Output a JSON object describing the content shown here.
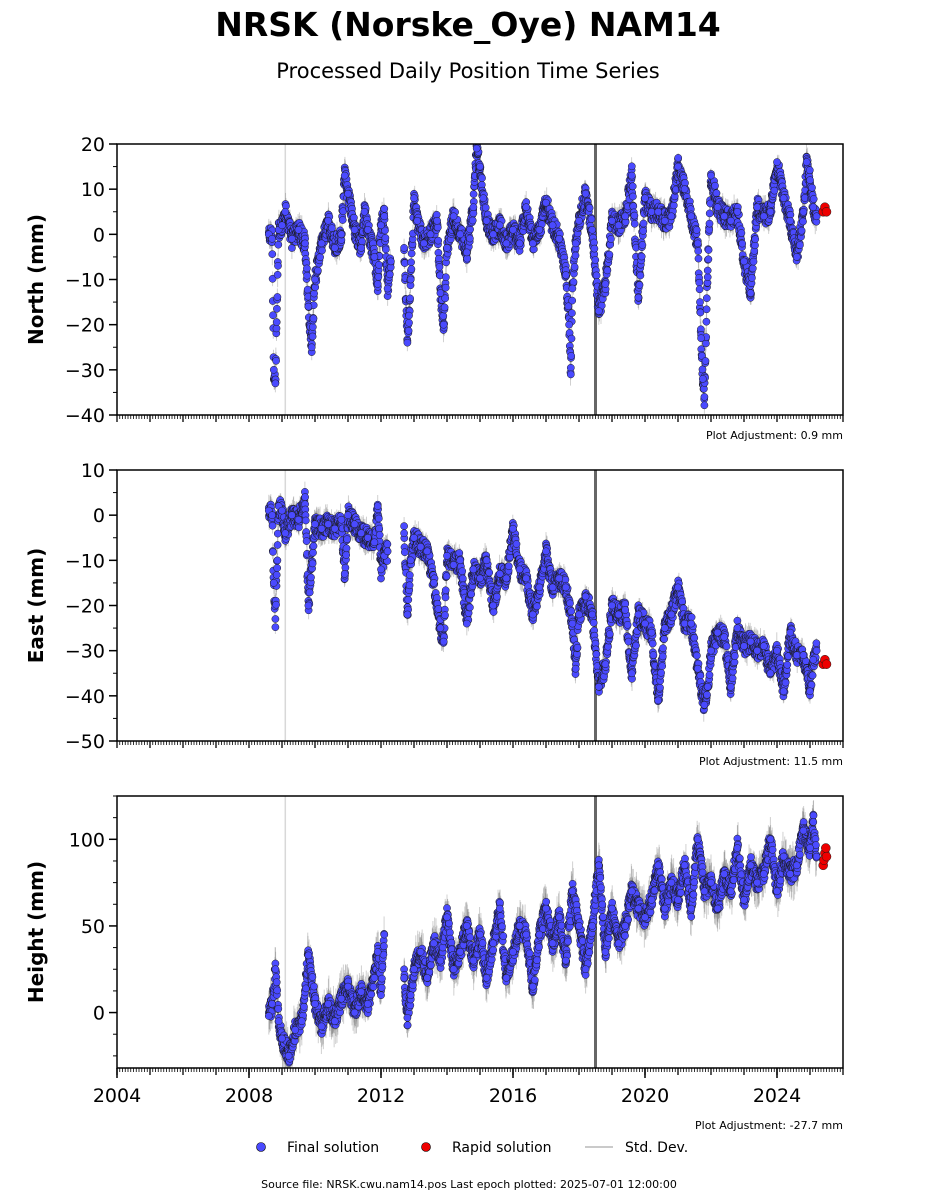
{
  "title": "NRSK (Norske_Oye) NAM14",
  "subtitle": "Processed Daily Position Time Series",
  "footer": "Source file: NRSK.cwu.nam14.pos  Last epoch plotted: 2025-07-01 12:00:00",
  "legend": {
    "final": "Final solution",
    "rapid": "Rapid solution",
    "std": "Std. Dev."
  },
  "colors": {
    "final": "#4a4aff",
    "rapid": "#ee0000",
    "std": "#b8b8b8",
    "event_light": "#d8d8d8",
    "event_dark": "#666666"
  },
  "chart_data": [
    {
      "type": "scatter",
      "name": "north",
      "ylabel": "North (mm)",
      "ylim": [
        -40,
        20
      ],
      "yticks": [
        -40,
        -30,
        -20,
        -10,
        0,
        10,
        20
      ],
      "ytick_labels": [
        "−40",
        "−30",
        "−20",
        "−10",
        "0",
        "10",
        "20"
      ],
      "xlim": [
        2004.0,
        2026.0
      ],
      "adjustment": "Plot Adjustment: 0.9 mm",
      "events": [
        {
          "x": 2009.1,
          "style": "light"
        },
        {
          "x": 2018.5,
          "style": "dark"
        }
      ],
      "final_series": [
        [
          2008.6,
          0
        ],
        [
          2008.7,
          -1
        ],
        [
          2008.75,
          -30
        ],
        [
          2008.8,
          -33
        ],
        [
          2008.9,
          1
        ],
        [
          2009.0,
          2
        ],
        [
          2009.1,
          5
        ],
        [
          2009.3,
          -1
        ],
        [
          2009.5,
          1
        ],
        [
          2009.7,
          -2
        ],
        [
          2009.8,
          -16
        ],
        [
          2009.9,
          -25
        ],
        [
          2010.0,
          -10
        ],
        [
          2010.2,
          -2
        ],
        [
          2010.4,
          3
        ],
        [
          2010.6,
          -3
        ],
        [
          2010.8,
          0
        ],
        [
          2010.9,
          13
        ],
        [
          2011.0,
          9
        ],
        [
          2011.2,
          1
        ],
        [
          2011.4,
          -3
        ],
        [
          2011.5,
          5
        ],
        [
          2011.6,
          1
        ],
        [
          2011.8,
          -5
        ],
        [
          2011.9,
          -11
        ],
        [
          2012.0,
          2
        ],
        [
          2012.1,
          4
        ],
        [
          2012.2,
          -12
        ],
        [
          2012.3,
          -6
        ],
        [
          2012.7,
          -3
        ],
        [
          2012.8,
          -24
        ],
        [
          2012.85,
          -18
        ],
        [
          2012.9,
          -10
        ],
        [
          2013.0,
          8
        ],
        [
          2013.1,
          3
        ],
        [
          2013.3,
          -2
        ],
        [
          2013.5,
          0
        ],
        [
          2013.7,
          3
        ],
        [
          2013.8,
          -13
        ],
        [
          2013.9,
          -20
        ],
        [
          2014.0,
          -3
        ],
        [
          2014.2,
          4
        ],
        [
          2014.4,
          0
        ],
        [
          2014.6,
          -4
        ],
        [
          2014.8,
          6
        ],
        [
          2014.9,
          19
        ],
        [
          2015.0,
          15
        ],
        [
          2015.1,
          8
        ],
        [
          2015.2,
          3
        ],
        [
          2015.4,
          0
        ],
        [
          2015.6,
          2
        ],
        [
          2015.8,
          -2
        ],
        [
          2016.0,
          1
        ],
        [
          2016.2,
          -2
        ],
        [
          2016.4,
          6
        ],
        [
          2016.6,
          -2
        ],
        [
          2016.8,
          1
        ],
        [
          2017.0,
          7
        ],
        [
          2017.2,
          2
        ],
        [
          2017.4,
          -1
        ],
        [
          2017.6,
          -9
        ],
        [
          2017.7,
          -20
        ],
        [
          2017.75,
          -31
        ],
        [
          2017.8,
          -12
        ],
        [
          2017.9,
          -2
        ],
        [
          2018.0,
          3
        ],
        [
          2018.2,
          9
        ],
        [
          2018.4,
          1
        ],
        [
          2018.6,
          -17
        ],
        [
          2018.8,
          -11
        ],
        [
          2019.0,
          3
        ],
        [
          2019.2,
          2
        ],
        [
          2019.4,
          4
        ],
        [
          2019.6,
          13
        ],
        [
          2019.8,
          -14
        ],
        [
          2020.0,
          8
        ],
        [
          2020.2,
          5
        ],
        [
          2020.4,
          5
        ],
        [
          2020.6,
          3
        ],
        [
          2020.8,
          4
        ],
        [
          2021.0,
          15
        ],
        [
          2021.2,
          10
        ],
        [
          2021.4,
          4
        ],
        [
          2021.6,
          -2
        ],
        [
          2021.7,
          -23
        ],
        [
          2021.75,
          -32
        ],
        [
          2021.8,
          -36
        ],
        [
          2021.9,
          -8
        ],
        [
          2022.0,
          13
        ],
        [
          2022.2,
          6
        ],
        [
          2022.4,
          4
        ],
        [
          2022.6,
          3
        ],
        [
          2022.8,
          5
        ],
        [
          2023.0,
          -6
        ],
        [
          2023.2,
          -13
        ],
        [
          2023.4,
          6
        ],
        [
          2023.6,
          4
        ],
        [
          2023.8,
          5
        ],
        [
          2024.0,
          16
        ],
        [
          2024.2,
          8
        ],
        [
          2024.4,
          3
        ],
        [
          2024.6,
          -5
        ],
        [
          2024.8,
          5
        ],
        [
          2024.9,
          16
        ],
        [
          2025.0,
          12
        ],
        [
          2025.1,
          6
        ],
        [
          2025.2,
          4
        ]
      ],
      "rapid_series": [
        [
          2025.4,
          5
        ],
        [
          2025.45,
          6
        ],
        [
          2025.5,
          5
        ]
      ]
    },
    {
      "type": "scatter",
      "name": "east",
      "ylabel": "East (mm)",
      "ylim": [
        -50,
        10
      ],
      "yticks": [
        -50,
        -40,
        -30,
        -20,
        -10,
        0,
        10
      ],
      "ytick_labels": [
        "−50",
        "−40",
        "−30",
        "−20",
        "−10",
        "0",
        "10"
      ],
      "xlim": [
        2004.0,
        2026.0
      ],
      "adjustment": "Plot Adjustment: 11.5 mm",
      "events": [
        {
          "x": 2009.1,
          "style": "light"
        },
        {
          "x": 2018.5,
          "style": "dark"
        }
      ],
      "final_series": [
        [
          2008.6,
          1
        ],
        [
          2008.7,
          0
        ],
        [
          2008.75,
          -15
        ],
        [
          2008.8,
          -23
        ],
        [
          2008.9,
          2
        ],
        [
          2009.0,
          1
        ],
        [
          2009.1,
          -4
        ],
        [
          2009.3,
          0
        ],
        [
          2009.5,
          -1
        ],
        [
          2009.7,
          4
        ],
        [
          2009.8,
          -20
        ],
        [
          2010.0,
          -2
        ],
        [
          2010.2,
          -3
        ],
        [
          2010.4,
          -2
        ],
        [
          2010.6,
          -3
        ],
        [
          2010.8,
          -1
        ],
        [
          2010.9,
          -13
        ],
        [
          2011.0,
          0
        ],
        [
          2011.2,
          -2
        ],
        [
          2011.4,
          -4
        ],
        [
          2011.6,
          -5
        ],
        [
          2011.8,
          -6
        ],
        [
          2011.9,
          2
        ],
        [
          2012.0,
          -12
        ],
        [
          2012.1,
          -9
        ],
        [
          2012.2,
          -8
        ],
        [
          2012.7,
          -4
        ],
        [
          2012.8,
          -22
        ],
        [
          2012.9,
          -10
        ],
        [
          2013.0,
          -5
        ],
        [
          2013.2,
          -7
        ],
        [
          2013.4,
          -8
        ],
        [
          2013.6,
          -15
        ],
        [
          2013.8,
          -25
        ],
        [
          2013.9,
          -28
        ],
        [
          2014.0,
          -9
        ],
        [
          2014.2,
          -11
        ],
        [
          2014.4,
          -10
        ],
        [
          2014.6,
          -24
        ],
        [
          2014.8,
          -12
        ],
        [
          2015.0,
          -14
        ],
        [
          2015.2,
          -10
        ],
        [
          2015.4,
          -20
        ],
        [
          2015.6,
          -13
        ],
        [
          2015.8,
          -14
        ],
        [
          2016.0,
          -3
        ],
        [
          2016.2,
          -12
        ],
        [
          2016.4,
          -14
        ],
        [
          2016.6,
          -22
        ],
        [
          2016.8,
          -16
        ],
        [
          2017.0,
          -8
        ],
        [
          2017.2,
          -16
        ],
        [
          2017.4,
          -14
        ],
        [
          2017.6,
          -16
        ],
        [
          2017.8,
          -24
        ],
        [
          2017.9,
          -34
        ],
        [
          2018.0,
          -22
        ],
        [
          2018.2,
          -18
        ],
        [
          2018.4,
          -22
        ],
        [
          2018.6,
          -38
        ],
        [
          2018.8,
          -33
        ],
        [
          2019.0,
          -20
        ],
        [
          2019.2,
          -22
        ],
        [
          2019.4,
          -21
        ],
        [
          2019.6,
          -35
        ],
        [
          2019.8,
          -22
        ],
        [
          2020.0,
          -24
        ],
        [
          2020.2,
          -26
        ],
        [
          2020.4,
          -41
        ],
        [
          2020.6,
          -25
        ],
        [
          2020.8,
          -22
        ],
        [
          2021.0,
          -16
        ],
        [
          2021.2,
          -24
        ],
        [
          2021.4,
          -24
        ],
        [
          2021.6,
          -34
        ],
        [
          2021.8,
          -42
        ],
        [
          2021.9,
          -38
        ],
        [
          2022.0,
          -30
        ],
        [
          2022.2,
          -26
        ],
        [
          2022.4,
          -27
        ],
        [
          2022.6,
          -38
        ],
        [
          2022.8,
          -25
        ],
        [
          2023.0,
          -29
        ],
        [
          2023.2,
          -28
        ],
        [
          2023.4,
          -30
        ],
        [
          2023.6,
          -29
        ],
        [
          2023.8,
          -35
        ],
        [
          2024.0,
          -30
        ],
        [
          2024.2,
          -39
        ],
        [
          2024.4,
          -26
        ],
        [
          2024.6,
          -31
        ],
        [
          2024.8,
          -31
        ],
        [
          2025.0,
          -39
        ],
        [
          2025.1,
          -32
        ],
        [
          2025.2,
          -30
        ]
      ],
      "rapid_series": [
        [
          2025.4,
          -33
        ],
        [
          2025.45,
          -32
        ],
        [
          2025.5,
          -33
        ]
      ]
    },
    {
      "type": "scatter",
      "name": "height",
      "ylabel": "Height (mm)",
      "ylim": [
        -32,
        125
      ],
      "yticks": [
        0,
        50,
        100
      ],
      "ytick_labels": [
        "0",
        "50",
        "100"
      ],
      "minor_yticks": [
        -25,
        -12.5,
        12.5,
        25,
        37.5,
        62.5,
        75,
        87.5,
        112.5,
        125
      ],
      "xlim": [
        2004.0,
        2026.0
      ],
      "xticks": [
        2004,
        2008,
        2012,
        2016,
        2020,
        2024
      ],
      "xtick_labels": [
        "2004",
        "2008",
        "2012",
        "2016",
        "2020",
        "2024"
      ],
      "adjustment": "Plot Adjustment: -27.7 mm",
      "events": [
        {
          "x": 2009.1,
          "style": "light"
        },
        {
          "x": 2018.5,
          "style": "dark"
        }
      ],
      "final_series": [
        [
          2008.6,
          -2
        ],
        [
          2008.7,
          5
        ],
        [
          2008.8,
          25
        ],
        [
          2008.9,
          -5
        ],
        [
          2009.0,
          -15
        ],
        [
          2009.2,
          -25
        ],
        [
          2009.4,
          -10
        ],
        [
          2009.6,
          -5
        ],
        [
          2009.8,
          33
        ],
        [
          2010.0,
          5
        ],
        [
          2010.2,
          -8
        ],
        [
          2010.4,
          5
        ],
        [
          2010.6,
          -5
        ],
        [
          2010.8,
          8
        ],
        [
          2011.0,
          15
        ],
        [
          2011.2,
          0
        ],
        [
          2011.4,
          12
        ],
        [
          2011.6,
          5
        ],
        [
          2011.8,
          20
        ],
        [
          2011.9,
          35
        ],
        [
          2012.0,
          10
        ],
        [
          2012.1,
          45
        ],
        [
          2012.7,
          20
        ],
        [
          2012.8,
          -3
        ],
        [
          2012.9,
          10
        ],
        [
          2013.0,
          25
        ],
        [
          2013.2,
          35
        ],
        [
          2013.4,
          20
        ],
        [
          2013.6,
          40
        ],
        [
          2013.8,
          30
        ],
        [
          2014.0,
          55
        ],
        [
          2014.2,
          25
        ],
        [
          2014.4,
          35
        ],
        [
          2014.6,
          50
        ],
        [
          2014.8,
          30
        ],
        [
          2015.0,
          45
        ],
        [
          2015.2,
          20
        ],
        [
          2015.4,
          40
        ],
        [
          2015.6,
          60
        ],
        [
          2015.8,
          20
        ],
        [
          2016.0,
          35
        ],
        [
          2016.2,
          50
        ],
        [
          2016.4,
          45
        ],
        [
          2016.6,
          15
        ],
        [
          2016.8,
          45
        ],
        [
          2017.0,
          60
        ],
        [
          2017.2,
          40
        ],
        [
          2017.4,
          55
        ],
        [
          2017.6,
          30
        ],
        [
          2017.8,
          70
        ],
        [
          2018.0,
          50
        ],
        [
          2018.2,
          25
        ],
        [
          2018.4,
          50
        ],
        [
          2018.6,
          85
        ],
        [
          2018.8,
          35
        ],
        [
          2019.0,
          60
        ],
        [
          2019.2,
          40
        ],
        [
          2019.4,
          50
        ],
        [
          2019.6,
          70
        ],
        [
          2019.8,
          60
        ],
        [
          2020.0,
          55
        ],
        [
          2020.2,
          65
        ],
        [
          2020.4,
          85
        ],
        [
          2020.6,
          60
        ],
        [
          2020.8,
          75
        ],
        [
          2021.0,
          65
        ],
        [
          2021.2,
          85
        ],
        [
          2021.4,
          60
        ],
        [
          2021.6,
          100
        ],
        [
          2021.8,
          70
        ],
        [
          2022.0,
          75
        ],
        [
          2022.2,
          60
        ],
        [
          2022.4,
          80
        ],
        [
          2022.6,
          70
        ],
        [
          2022.8,
          95
        ],
        [
          2023.0,
          65
        ],
        [
          2023.2,
          85
        ],
        [
          2023.4,
          75
        ],
        [
          2023.6,
          80
        ],
        [
          2023.8,
          100
        ],
        [
          2024.0,
          70
        ],
        [
          2024.2,
          90
        ],
        [
          2024.4,
          80
        ],
        [
          2024.6,
          85
        ],
        [
          2024.8,
          105
        ],
        [
          2025.0,
          95
        ],
        [
          2025.1,
          110
        ],
        [
          2025.2,
          90
        ]
      ],
      "rapid_series": [
        [
          2025.4,
          85
        ],
        [
          2025.42,
          88
        ],
        [
          2025.45,
          92
        ],
        [
          2025.48,
          95
        ],
        [
          2025.5,
          90
        ]
      ]
    }
  ]
}
